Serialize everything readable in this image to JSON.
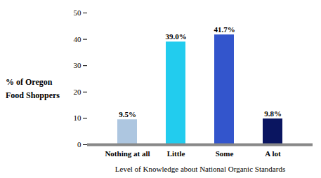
{
  "chart_data": {
    "type": "bar",
    "categories": [
      "Nothing at all",
      "Little",
      "Some",
      "A lot"
    ],
    "values": [
      9.5,
      39.0,
      41.7,
      9.8
    ],
    "value_labels": [
      "9.5%",
      "39.0%",
      "41.7%",
      "9.8%"
    ],
    "data_labels": true,
    "colors": [
      "#adc6e0",
      "#22ccee",
      "#3355cc",
      "#0a1560"
    ],
    "xlabel": "Level of Knowledge about National Organic Standards",
    "ylabel": "% of Oregon\nFood Shoppers",
    "ylim": [
      0,
      50
    ],
    "yticks": [
      0,
      10,
      20,
      30,
      40,
      50
    ],
    "grid": false
  }
}
